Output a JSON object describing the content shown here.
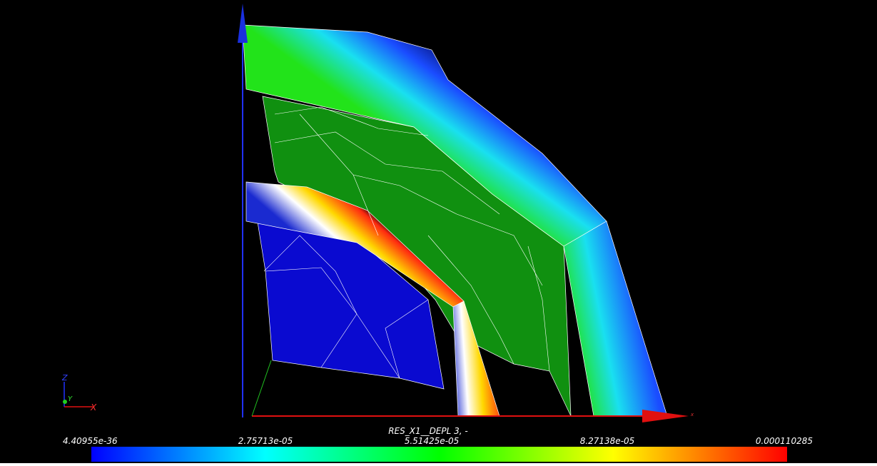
{
  "scalar_bar": {
    "title": "RES_X1__DEPL 3, -",
    "labels": [
      "4.40955e-36",
      "2.75713e-05",
      "5.51425e-05",
      "8.27138e-05",
      "0.000110285"
    ]
  },
  "orientation_axes": {
    "z": "Z",
    "y": "Y",
    "x": "X"
  },
  "scene_axis_label": "x"
}
